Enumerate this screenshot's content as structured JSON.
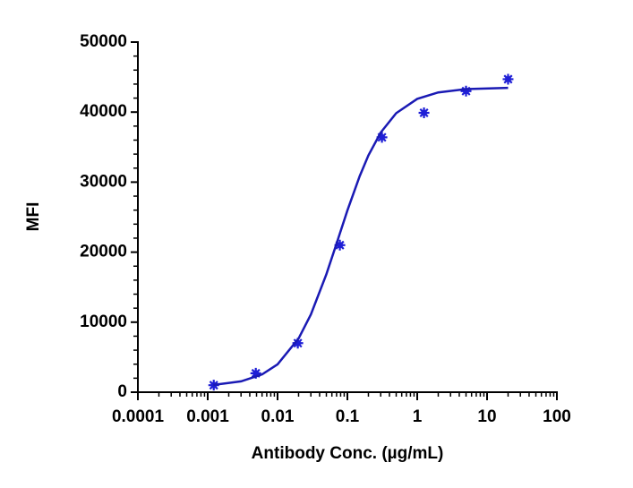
{
  "chart_data": {
    "type": "scatter",
    "x_label": "Antibody Conc. (µg/mL)",
    "y_label": "MFI",
    "xscale": "log",
    "xlim": [
      0.0001,
      100
    ],
    "xticks": [
      0.0001,
      0.001,
      0.01,
      0.1,
      1,
      10,
      100
    ],
    "ylim": [
      0,
      50000
    ],
    "yticks": [
      0,
      10000,
      20000,
      30000,
      40000,
      50000
    ],
    "series": [
      {
        "kind": "points",
        "color": "#1f1fd6",
        "x": [
          0.00122,
          0.00488,
          0.0195,
          0.078,
          0.3125,
          1.25,
          5,
          20
        ],
        "values": [
          1000,
          2700,
          7000,
          21000,
          36400,
          39900,
          43000,
          44700
        ]
      },
      {
        "kind": "line",
        "color": "#1a1ab4",
        "x": [
          0.0012,
          0.003,
          0.006,
          0.01,
          0.02,
          0.03,
          0.05,
          0.07,
          0.1,
          0.15,
          0.2,
          0.3,
          0.5,
          1,
          2,
          5,
          20
        ],
        "values": [
          1040,
          1550,
          2540,
          3980,
          7670,
          11100,
          16840,
          21230,
          25950,
          30850,
          33820,
          37080,
          39850,
          41890,
          42810,
          43280,
          43460
        ]
      }
    ]
  }
}
